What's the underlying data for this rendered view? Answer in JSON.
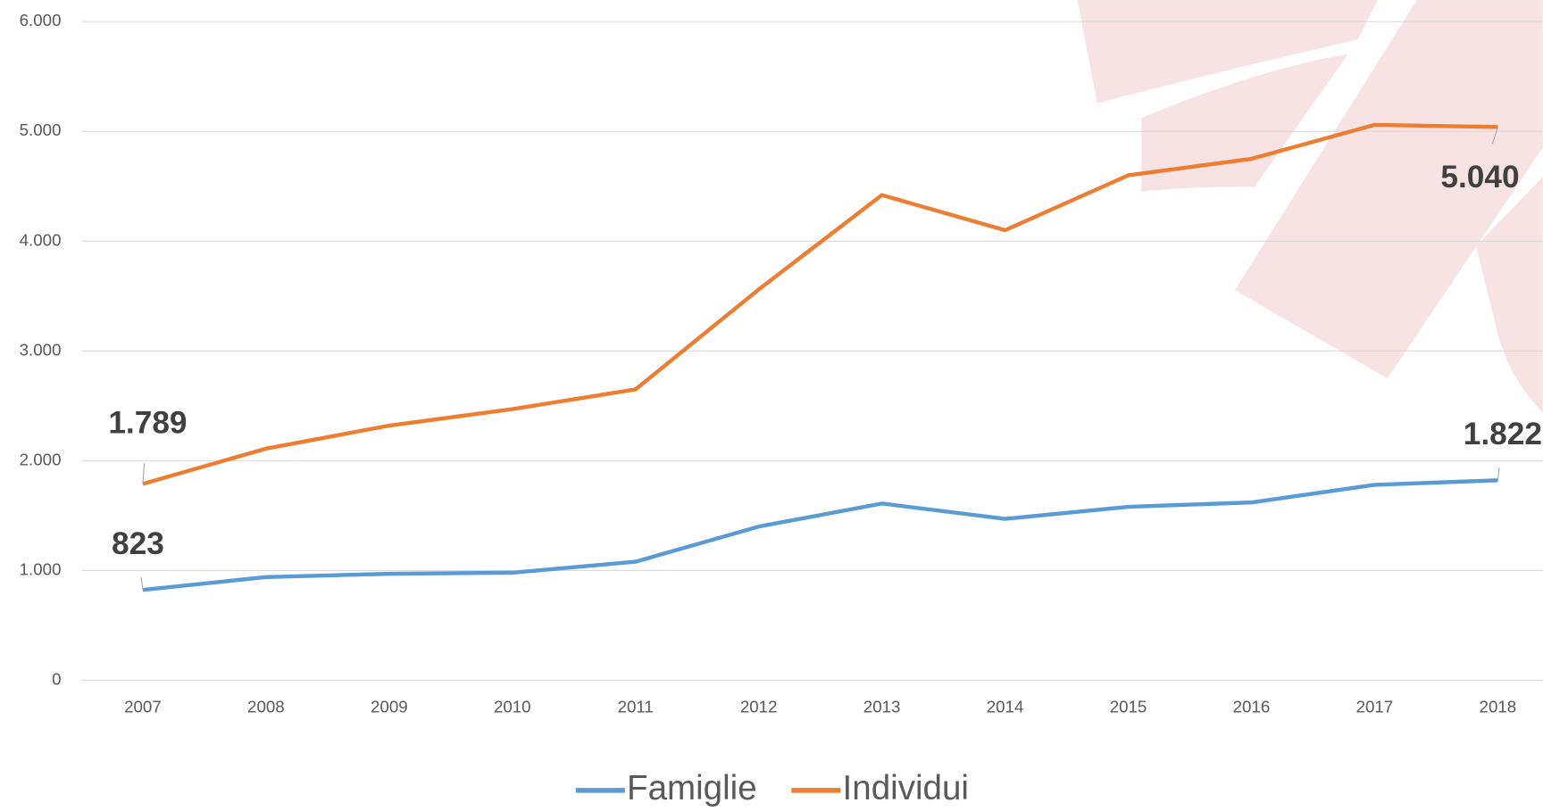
{
  "chart_data": {
    "type": "line",
    "categories": [
      "2007",
      "2008",
      "2009",
      "2010",
      "2011",
      "2012",
      "2013",
      "2014",
      "2015",
      "2016",
      "2017",
      "2018"
    ],
    "series": [
      {
        "name": "Famiglie",
        "color": "#5b9bd5",
        "values": [
          823,
          940,
          970,
          980,
          1080,
          1400,
          1610,
          1470,
          1580,
          1620,
          1780,
          1822
        ],
        "value_labels": [
          "823",
          null,
          null,
          null,
          null,
          null,
          null,
          null,
          null,
          null,
          null,
          "1.822"
        ]
      },
      {
        "name": "Individui",
        "color": "#ed7d31",
        "values": [
          1789,
          2110,
          2320,
          2470,
          2650,
          3560,
          4420,
          4100,
          4600,
          4750,
          5060,
          5040
        ],
        "value_labels": [
          "1.789",
          null,
          null,
          null,
          null,
          null,
          null,
          null,
          null,
          null,
          null,
          "5.040"
        ]
      }
    ],
    "ylim": [
      0,
      6000
    ],
    "yticks": [
      0,
      {
        "value": 1000,
        "label": "1.000"
      },
      {
        "value": 2000,
        "label": "2.000"
      },
      {
        "value": 3000,
        "label": "3.000"
      },
      {
        "value": 4000,
        "label": "4.000"
      },
      {
        "value": 5000,
        "label": "5.000"
      },
      {
        "value": 6000,
        "label": "6.000"
      }
    ],
    "grid": true,
    "legend": "bottom"
  }
}
